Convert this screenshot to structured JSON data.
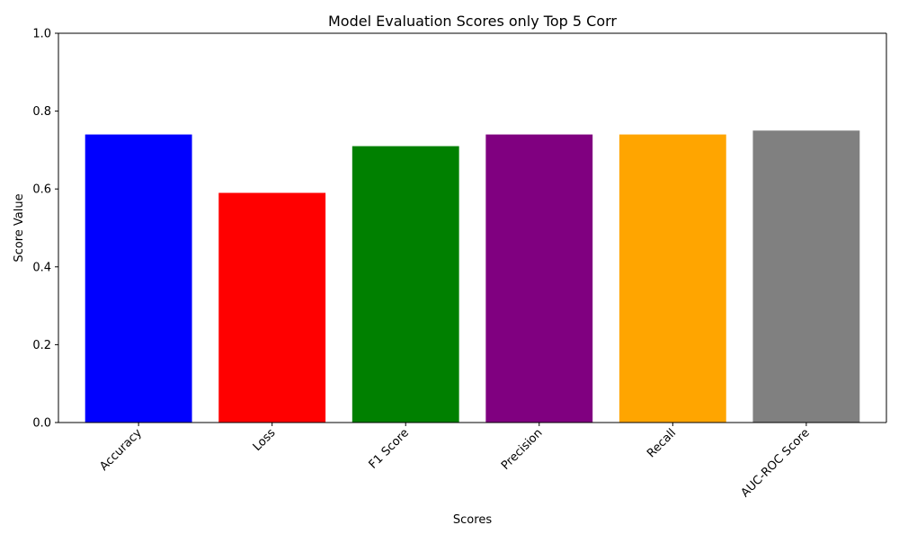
{
  "chart_data": {
    "type": "bar",
    "title": "Model Evaluation Scores only Top 5 Corr",
    "xlabel": "Scores",
    "ylabel": "Score Value",
    "categories": [
      "Accuracy",
      "Loss",
      "F1 Score",
      "Precision",
      "Recall",
      "AUC-ROC Score"
    ],
    "values": [
      0.74,
      0.59,
      0.71,
      0.74,
      0.74,
      0.75
    ],
    "colors": [
      "#0000ff",
      "#ff0000",
      "#008000",
      "#800080",
      "#ffa500",
      "#808080"
    ],
    "ylim": [
      0,
      1.0
    ],
    "yticks": [
      "0.0",
      "0.2",
      "0.4",
      "0.6",
      "0.8",
      "1.0"
    ],
    "grid": false,
    "legend": "none",
    "xtick_rotation_deg": 45
  }
}
